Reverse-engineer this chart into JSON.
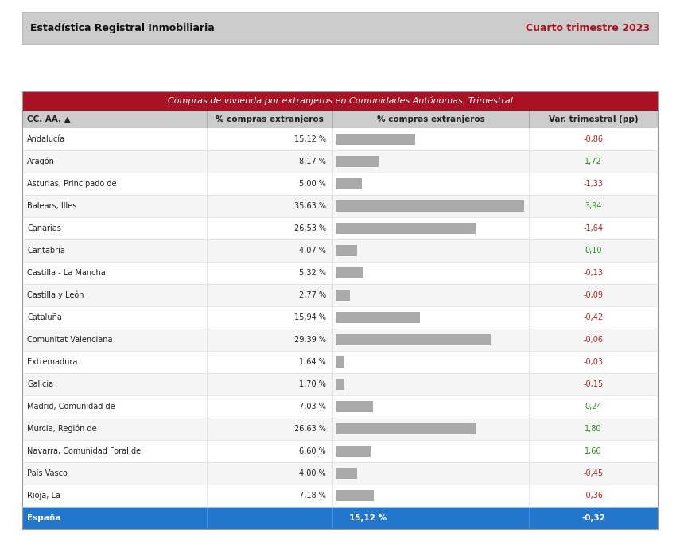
{
  "header_title": "Compras de vivienda por extranjeros en Comunidades Autónomas. Trimestral",
  "col_headers": [
    "CC. AA. ▲",
    "% compras extranjeros",
    "% compras extranjeros",
    "Var. trimestral (pp)"
  ],
  "top_left_text": "Estadística Registral Inmobiliaria",
  "top_right_text": "Cuarto trimestre 2023",
  "rows": [
    {
      "name": "Andalucía",
      "pct": 15.12,
      "pct_str": "15,12 %",
      "var": -0.86,
      "var_str": "-0,86"
    },
    {
      "name": "Aragón",
      "pct": 8.17,
      "pct_str": "8,17 %",
      "var": 1.72,
      "var_str": "1,72"
    },
    {
      "name": "Asturias, Principado de",
      "pct": 5.0,
      "pct_str": "5,00 %",
      "var": -1.33,
      "var_str": "-1,33"
    },
    {
      "name": "Balears, Illes",
      "pct": 35.63,
      "pct_str": "35,63 %",
      "var": 3.94,
      "var_str": "3,94"
    },
    {
      "name": "Canarias",
      "pct": 26.53,
      "pct_str": "26,53 %",
      "var": -1.64,
      "var_str": "-1,64"
    },
    {
      "name": "Cantabria",
      "pct": 4.07,
      "pct_str": "4,07 %",
      "var": 0.1,
      "var_str": "0,10"
    },
    {
      "name": "Castilla - La Mancha",
      "pct": 5.32,
      "pct_str": "5,32 %",
      "var": -0.13,
      "var_str": "-0,13"
    },
    {
      "name": "Castilla y León",
      "pct": 2.77,
      "pct_str": "2,77 %",
      "var": -0.09,
      "var_str": "-0,09"
    },
    {
      "name": "Cataluña",
      "pct": 15.94,
      "pct_str": "15,94 %",
      "var": -0.42,
      "var_str": "-0,42"
    },
    {
      "name": "Comunitat Valenciana",
      "pct": 29.39,
      "pct_str": "29,39 %",
      "var": -0.06,
      "var_str": "-0,06"
    },
    {
      "name": "Extremadura",
      "pct": 1.64,
      "pct_str": "1,64 %",
      "var": -0.03,
      "var_str": "-0,03"
    },
    {
      "name": "Galicia",
      "pct": 1.7,
      "pct_str": "1,70 %",
      "var": -0.15,
      "var_str": "-0,15"
    },
    {
      "name": "Madrid, Comunidad de",
      "pct": 7.03,
      "pct_str": "7,03 %",
      "var": 0.24,
      "var_str": "0,24"
    },
    {
      "name": "Murcia, Región de",
      "pct": 26.63,
      "pct_str": "26,63 %",
      "var": 1.8,
      "var_str": "1,80"
    },
    {
      "name": "Navarra, Comunidad Foral de",
      "pct": 6.6,
      "pct_str": "6,60 %",
      "var": 1.66,
      "var_str": "1,66"
    },
    {
      "name": "País Vasco",
      "pct": 4.0,
      "pct_str": "4,00 %",
      "var": -0.45,
      "var_str": "-0,45"
    },
    {
      "name": "Rioja, La",
      "pct": 7.18,
      "pct_str": "7,18 %",
      "var": -0.36,
      "var_str": "-0,36"
    }
  ],
  "footer_row": {
    "name": "España",
    "pct_str": "15,12 %",
    "var": -0.32,
    "var_str": "-0,32"
  },
  "bar_max": 36.0,
  "bar_color": "#aaaaaa",
  "header_bg": "#aa1122",
  "header_fg": "#ffffff",
  "col_header_bg": "#cccccc",
  "col_header_fg": "#222222",
  "row_even_bg": "#ffffff",
  "row_odd_bg": "#f5f5f5",
  "footer_bg": "#2277cc",
  "footer_fg": "#ffffff",
  "positive_color": "#2e8b20",
  "negative_color": "#b22020",
  "top_bar_bg": "#cccccc",
  "top_bar_fg": "#111111",
  "top_right_color": "#aa1122",
  "fig_bg": "#ffffff"
}
